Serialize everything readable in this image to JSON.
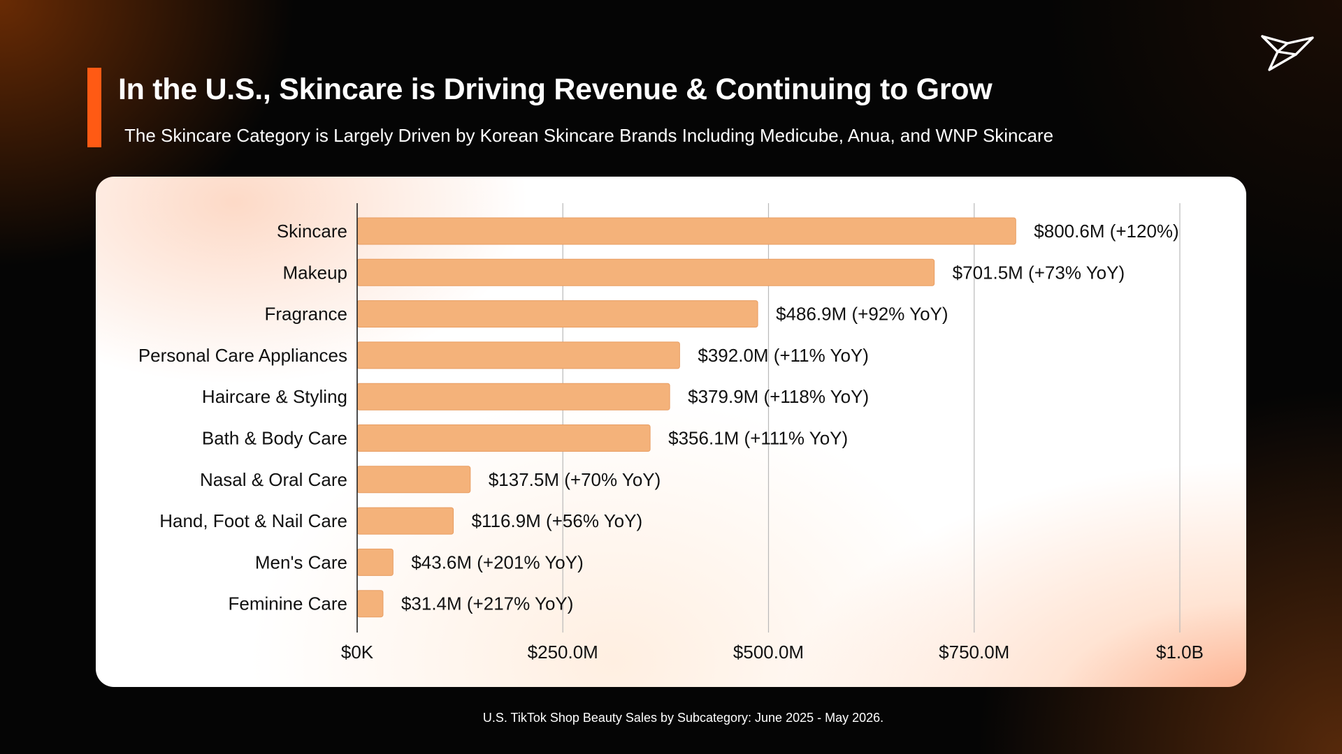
{
  "header": {
    "title": "In the U.S., Skincare is Driving Revenue & Continuing to Grow",
    "subtitle": "The Skincare Category is Largely Driven by Korean Skincare Brands Including Medicube, Anua, and WNP Skincare"
  },
  "logo": {
    "icon": "paper-bird-logo-icon"
  },
  "caption": "U.S. TikTok Shop Beauty Sales by Subcategory: June 2025 - May 2026.",
  "colors": {
    "accent": "#ff5a14",
    "bar": "#f4b27a",
    "bar_edge": "#e89d62"
  },
  "chart_data": {
    "type": "bar",
    "orientation": "horizontal",
    "title": "",
    "xlabel": "",
    "ylabel": "",
    "xlim": [
      0,
      1000
    ],
    "value_unit": "$M",
    "grid": true,
    "x_ticks": [
      {
        "value": 0,
        "label": "$0K"
      },
      {
        "value": 250,
        "label": "$250.0M"
      },
      {
        "value": 500,
        "label": "$500.0M"
      },
      {
        "value": 750,
        "label": "$750.0M"
      },
      {
        "value": 1000,
        "label": "$1.0B"
      }
    ],
    "categories": [
      "Skincare",
      "Makeup",
      "Fragrance",
      "Personal Care Appliances",
      "Haircare & Styling",
      "Bath & Body Care",
      "Nasal & Oral Care",
      "Hand, Foot & Nail Care",
      "Men's Care",
      "Feminine Care"
    ],
    "values": [
      800.6,
      701.5,
      486.9,
      392.0,
      379.9,
      356.1,
      137.5,
      116.9,
      43.6,
      31.4
    ],
    "data_labels": [
      "$800.6M (+120%)",
      "$701.5M (+73% YoY)",
      "$486.9M (+92% YoY)",
      "$392.0M (+11% YoY)",
      "$379.9M (+118% YoY)",
      "$356.1M (+111% YoY)",
      "$137.5M (+70% YoY)",
      "$116.9M (+56% YoY)",
      "$43.6M (+201% YoY)",
      "$31.4M (+217% YoY)"
    ]
  }
}
